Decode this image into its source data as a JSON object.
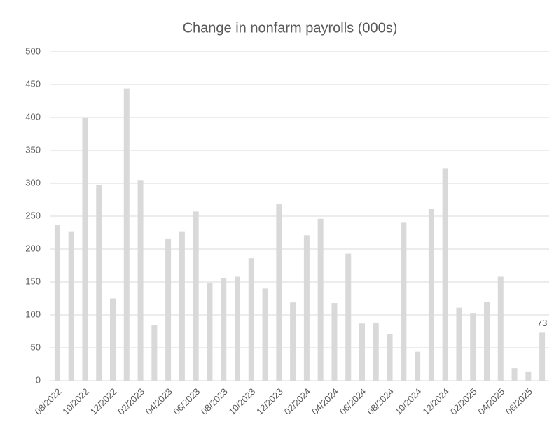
{
  "chart_data": {
    "type": "bar",
    "title": "Change in nonfarm payrolls (000s)",
    "categories": [
      "08/2022",
      null,
      "10/2022",
      null,
      "12/2022",
      null,
      "02/2023",
      null,
      "04/2023",
      null,
      "06/2023",
      null,
      "08/2023",
      null,
      "10/2023",
      null,
      "12/2023",
      null,
      "02/2024",
      null,
      "04/2024",
      null,
      "06/2024",
      null,
      "08/2024",
      null,
      "10/2024",
      null,
      "12/2024",
      null,
      "02/2025",
      null,
      "04/2025",
      null,
      "06/2025",
      null
    ],
    "values": [
      237,
      227,
      400,
      297,
      125,
      444,
      305,
      85,
      216,
      227,
      257,
      148,
      156,
      158,
      186,
      140,
      268,
      119,
      221,
      246,
      118,
      193,
      87,
      88,
      71,
      240,
      44,
      261,
      323,
      111,
      102,
      120,
      158,
      19,
      14,
      73
    ],
    "color": "#d9d9d9",
    "ylim": [
      0,
      500
    ],
    "yticks": [
      0,
      50,
      100,
      150,
      200,
      250,
      300,
      350,
      400,
      450,
      500
    ],
    "grid": true,
    "data_labels": "last"
  }
}
